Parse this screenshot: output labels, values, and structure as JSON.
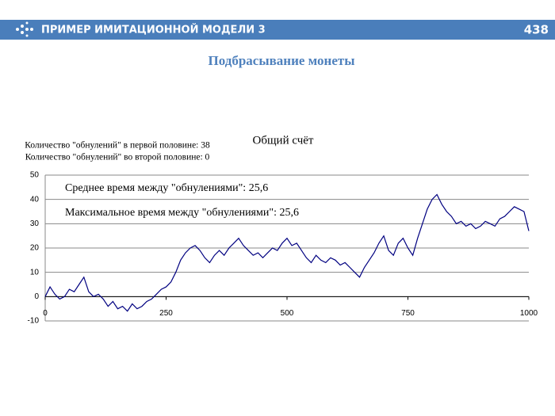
{
  "header": {
    "title": "ПРИМЕР ИМИТАЦИОННОЙ МОДЕЛИ 3",
    "page": "438"
  },
  "slide_title": "Подбрасывание монеты",
  "chart_data": {
    "type": "line",
    "title": "Общий счёт",
    "annotations": [
      "Количество \"обнулений\" в первой половине: 38",
      "Количество \"обнулений\" во второй половине: 0",
      "Среднее время между \"обнулениями\": 25,6",
      "Максимальное время между \"обнулениями\": 25,6"
    ],
    "x": [
      0,
      10,
      20,
      30,
      40,
      50,
      60,
      70,
      80,
      90,
      100,
      110,
      120,
      130,
      140,
      150,
      160,
      170,
      180,
      190,
      200,
      210,
      220,
      230,
      240,
      250,
      260,
      270,
      280,
      290,
      300,
      310,
      320,
      330,
      340,
      350,
      360,
      370,
      380,
      390,
      400,
      410,
      420,
      430,
      440,
      450,
      460,
      470,
      480,
      490,
      500,
      510,
      520,
      530,
      540,
      550,
      560,
      570,
      580,
      590,
      600,
      610,
      620,
      630,
      640,
      650,
      660,
      670,
      680,
      690,
      700,
      710,
      720,
      730,
      740,
      750,
      760,
      770,
      780,
      790,
      800,
      810,
      820,
      830,
      840,
      850,
      860,
      870,
      880,
      890,
      900,
      910,
      920,
      930,
      940,
      950,
      960,
      970,
      980,
      990,
      1000
    ],
    "values": [
      0,
      4,
      1,
      -1,
      0,
      3,
      2,
      5,
      8,
      2,
      0,
      1,
      -1,
      -4,
      -2,
      -5,
      -4,
      -6,
      -3,
      -5,
      -4,
      -2,
      -1,
      1,
      3,
      4,
      6,
      10,
      15,
      18,
      20,
      21,
      19,
      16,
      14,
      17,
      19,
      17,
      20,
      22,
      24,
      21,
      19,
      17,
      18,
      16,
      18,
      20,
      19,
      22,
      24,
      21,
      22,
      19,
      16,
      14,
      17,
      15,
      14,
      16,
      15,
      13,
      14,
      12,
      10,
      8,
      12,
      15,
      18,
      22,
      25,
      19,
      17,
      22,
      24,
      20,
      17,
      24,
      30,
      36,
      40,
      42,
      38,
      35,
      33,
      30,
      31,
      29,
      30,
      28,
      29,
      31,
      30,
      29,
      32,
      33,
      35,
      37,
      36,
      35,
      27
    ],
    "color": "#000080",
    "xlim": [
      0,
      1000
    ],
    "xticks": [
      0,
      250,
      500,
      750,
      1000
    ],
    "ylim": [
      -10,
      50
    ],
    "yticks": [
      50,
      40,
      30,
      20,
      10,
      0,
      -10
    ],
    "grid": true
  }
}
